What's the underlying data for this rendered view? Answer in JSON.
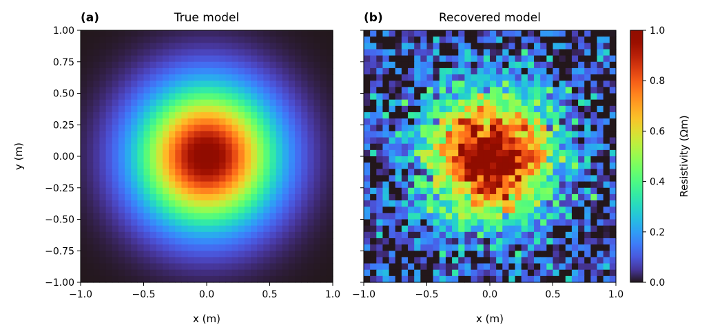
{
  "chart_data": [
    {
      "type": "heatmap",
      "panel_tag": "(a)",
      "title": "True model",
      "xlabel": "x (m)",
      "ylabel": "y (m)",
      "xlim": [
        -1.0,
        1.0
      ],
      "ylim": [
        -1.0,
        1.0
      ],
      "grid": false,
      "grid_size": 40,
      "field": "gaussian",
      "peak": 1.0,
      "noise": 0.0,
      "x_ticks": [
        "−1.0",
        "−0.5",
        "0.0",
        "0.5",
        "1.0"
      ],
      "y_ticks": [
        "1.00",
        "0.75",
        "0.50",
        "0.25",
        "0.00",
        "−0.25",
        "−0.50",
        "−0.75",
        "−1.00"
      ]
    },
    {
      "type": "heatmap",
      "panel_tag": "(b)",
      "title": "Recovered model",
      "xlabel": "x (m)",
      "ylabel": "",
      "xlim": [
        -1.0,
        1.0
      ],
      "ylim": [
        -1.0,
        1.0
      ],
      "grid": false,
      "grid_size": 40,
      "field": "gaussian",
      "peak": 1.0,
      "noise": 0.12,
      "x_ticks": [
        "−1.0",
        "−0.5",
        "0.0",
        "0.5",
        "1.0"
      ],
      "y_ticks": []
    }
  ],
  "colorbar": {
    "label": "Resistivity (Ωm)",
    "range": [
      0.0,
      1.0
    ],
    "ticks": [
      "0.0",
      "0.2",
      "0.4",
      "0.6",
      "0.8",
      "1.0"
    ],
    "colormap": "turbo"
  }
}
